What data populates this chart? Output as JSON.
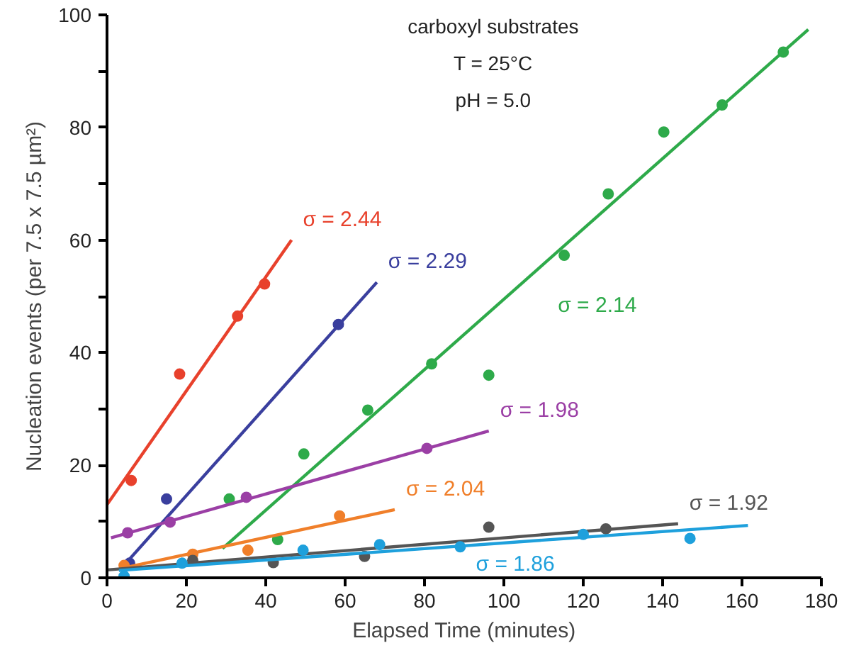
{
  "chart_data": {
    "type": "scatter",
    "xlabel": "Elapsed Time (minutes)",
    "ylabel": "Nucleation events (per 7.5 x 7.5 µm²)",
    "xlim": [
      0,
      180
    ],
    "ylim": [
      0,
      100
    ],
    "xticks": [
      0,
      20,
      40,
      60,
      80,
      100,
      120,
      140,
      160,
      180
    ],
    "yticks": [
      0,
      {
        "value": 10,
        "label": null
      },
      20,
      {
        "value": 30,
        "label": null
      },
      40,
      {
        "value": 50,
        "label": null
      },
      60,
      {
        "value": 70,
        "label": null
      },
      80,
      {
        "value": 90,
        "label": null
      },
      100
    ],
    "grid": false,
    "marker": "circle",
    "series": [
      {
        "color": "#e8412c",
        "x": [
          6.1,
          18.3,
          32.9,
          39.7
        ],
        "values": [
          17.3,
          36.2,
          46.5,
          52.2
        ]
      },
      {
        "type": "line",
        "marker": "none",
        "name": "σ = 2.44",
        "color": "#e8412c",
        "x": [
          0,
          46.5
        ],
        "values": [
          13,
          60
        ]
      },
      {
        "color": "#3a3f9e",
        "x": [
          5.7,
          15,
          58.3
        ],
        "values": [
          2.6,
          14,
          45
        ]
      },
      {
        "type": "line",
        "marker": "none",
        "name": "σ = 2.29",
        "color": "#3a3f9e",
        "x": [
          4,
          68
        ],
        "values": [
          2,
          52.5
        ]
      },
      {
        "color": "#2eaa4a",
        "x": [
          30.8,
          43,
          49.6,
          65.7,
          81.8,
          96.2,
          115.2,
          126.3,
          140.3,
          155,
          170.4
        ],
        "values": [
          14,
          6.8,
          22,
          29.8,
          38,
          36,
          57.3,
          68.2,
          79.2,
          84,
          93.4
        ]
      },
      {
        "type": "line",
        "marker": "none",
        "name": "σ = 2.14",
        "color": "#2eaa4a",
        "x": [
          29.1,
          176.7
        ],
        "values": [
          5.2,
          97.4
        ]
      },
      {
        "color": "#9b3fa5",
        "x": [
          5.2,
          15.9,
          35.1,
          80.6
        ],
        "values": [
          8,
          9.9,
          14.3,
          23
        ]
      },
      {
        "type": "line",
        "marker": "none",
        "name": "σ = 1.98",
        "color": "#9b3fa5",
        "x": [
          1,
          96.2
        ],
        "values": [
          7.1,
          26.1
        ]
      },
      {
        "color": "#f07f2a",
        "x": [
          4.3,
          21.6,
          35.5,
          58.6
        ],
        "values": [
          2.2,
          4.2,
          4.9,
          11
        ]
      },
      {
        "type": "line",
        "marker": "none",
        "name": "σ = 2.04",
        "color": "#f07f2a",
        "x": [
          3.1,
          72.5
        ],
        "values": [
          1.6,
          12.1
        ]
      },
      {
        "color": "#555555",
        "x": [
          21.6,
          41.9,
          64.9,
          96.2,
          125.7
        ],
        "values": [
          3.1,
          2.7,
          3.8,
          9,
          8.7
        ]
      },
      {
        "type": "line",
        "marker": "none",
        "name": "σ = 1.92",
        "color": "#555555",
        "x": [
          0,
          143.9
        ],
        "values": [
          1.4,
          9.6
        ]
      },
      {
        "color": "#1ea0dc",
        "x": [
          4.3,
          18.9,
          49.4,
          68.7,
          89,
          120,
          146.9
        ],
        "values": [
          0.3,
          2.6,
          4.9,
          5.9,
          5.5,
          7.7,
          7
        ]
      },
      {
        "type": "line",
        "marker": "none",
        "name": "σ = 1.86",
        "color": "#1ea0dc",
        "x": [
          3,
          161.5
        ],
        "values": [
          1.3,
          9.3
        ]
      }
    ],
    "annotations": [
      "carboxyl substrates",
      "T = 25°C",
      "pH = 5.0"
    ]
  }
}
